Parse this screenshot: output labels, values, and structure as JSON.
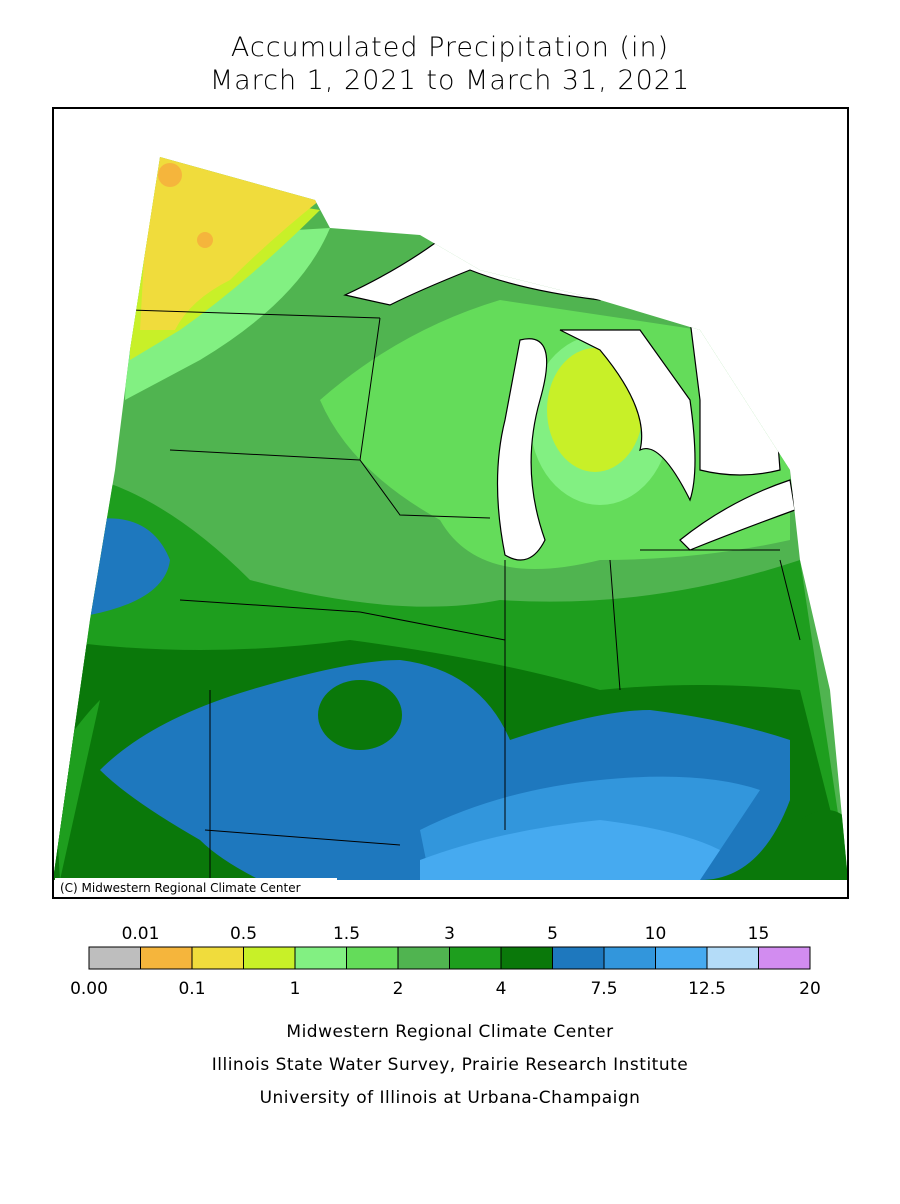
{
  "header": {
    "title_lines": [
      "Accumulated Precipitation (in)",
      "March 1, 2021 to March 31, 2021"
    ]
  },
  "map": {
    "credit": "(C) Midwestern Regional Climate Center"
  },
  "legend": {
    "labels": [
      "0.00",
      "0.01",
      "0.1",
      "0.5",
      "1",
      "1.5",
      "2",
      "3",
      "4",
      "5",
      "7.5",
      "10",
      "12.5",
      "15",
      "20"
    ],
    "colors": [
      "#bebebe",
      "#f5b53c",
      "#f0dc3c",
      "#c8f028",
      "#82f082",
      "#64dc5a",
      "#50b450",
      "#1e9e1e",
      "#0a780a",
      "#1e78be",
      "#3296dc",
      "#46aaf0",
      "#b4dcf8",
      "#d28cf0"
    ]
  },
  "footer": {
    "lines": [
      "Midwestern Regional Climate Center",
      "Illinois State Water Survey, Prairie Research Institute",
      "University of Illinois at Urbana-Champaign"
    ]
  }
}
